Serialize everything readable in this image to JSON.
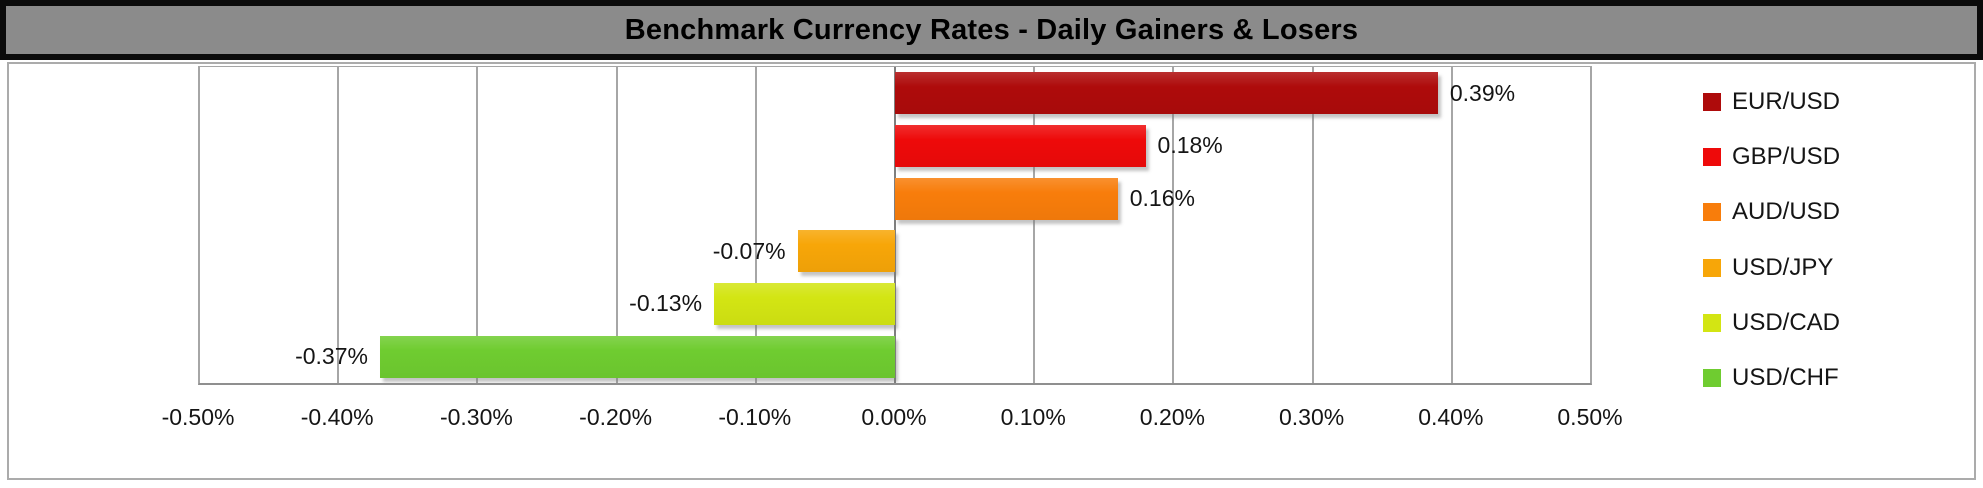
{
  "chart_data": {
    "type": "bar",
    "orientation": "horizontal",
    "title": "Benchmark Currency Rates - Daily Gainers & Losers",
    "categories": [
      "EUR/USD",
      "GBP/USD",
      "AUD/USD",
      "USD/JPY",
      "USD/CAD",
      "USD/CHF"
    ],
    "values": [
      0.39,
      0.18,
      0.16,
      -0.07,
      -0.13,
      -0.37
    ],
    "value_labels": [
      "0.39%",
      "0.18%",
      "0.16%",
      "-0.07%",
      "-0.13%",
      "-0.37%"
    ],
    "bar_colors": [
      "#ae0b0b",
      "#ee0a0a",
      "#f87d0b",
      "#f7a608",
      "#d3e513",
      "#6fcc30"
    ],
    "xlim": [
      -0.5,
      0.5
    ],
    "x_tick_labels": [
      "-0.50%",
      "-0.40%",
      "-0.30%",
      "-0.20%",
      "-0.10%",
      "0.00%",
      "0.10%",
      "0.20%",
      "0.30%",
      "0.40%",
      "0.50%"
    ],
    "grid": true,
    "legend_position": "right",
    "value_label_position": "outside-end"
  },
  "style": {
    "title_bg": "#8b8b8b",
    "title_border": "#0b0b0b",
    "title_text_color": "#000000",
    "chart_border": "#ababab",
    "grid_color": "#a6a6a6",
    "zero_line_color": "#7f7f7f",
    "text_color": "#151515"
  }
}
